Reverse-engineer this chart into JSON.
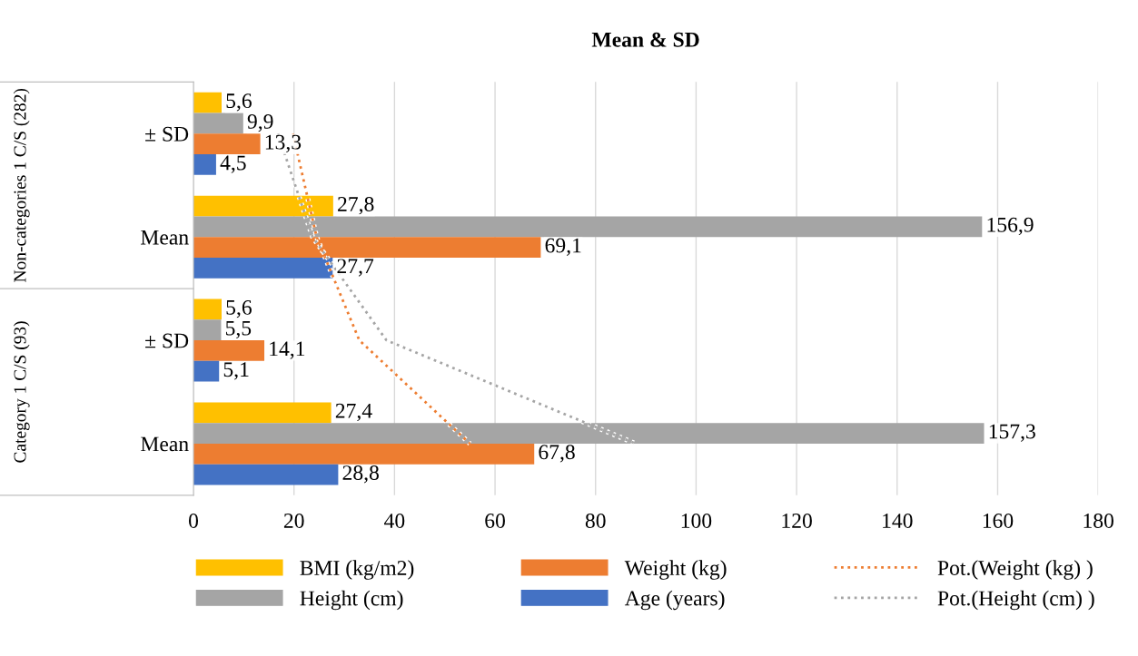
{
  "chart_data": {
    "type": "bar",
    "orientation": "horizontal",
    "title": "Mean & SD",
    "categories": [
      "± SD",
      "Mean",
      "± SD",
      "Mean"
    ],
    "annotations": [
      "Non-categories 1 C/S (282)",
      "Category 1 C/S (93)"
    ],
    "series": [
      {
        "name": "BMI (kg/m2)",
        "color": "#ffc000",
        "values": [
          5.6,
          27.8,
          5.6,
          27.4
        ],
        "value_labels": [
          "5,6",
          "27,8",
          "5,6",
          "27,4"
        ]
      },
      {
        "name": "Height (cm)",
        "color": "#a5a5a5",
        "values": [
          9.9,
          156.9,
          5.5,
          157.3
        ],
        "value_labels": [
          "9,9",
          "156,9",
          "5,5",
          "157,3"
        ]
      },
      {
        "name": "Weight (kg)",
        "color": "#ed7d31",
        "values": [
          13.3,
          69.1,
          14.1,
          67.8
        ],
        "value_labels": [
          "13,3",
          "69,1",
          "14,1",
          "67,8"
        ]
      },
      {
        "name": "Age (years)",
        "color": "#4472c4",
        "values": [
          4.5,
          27.7,
          5.1,
          28.8
        ],
        "value_labels": [
          "4,5",
          "27,7",
          "5,1",
          "28,8"
        ]
      },
      {
        "name": "Pot.(Weight (kg) )",
        "type": "line",
        "line_style": "dotted",
        "color": "#ed7d31",
        "values": [
          19.8,
          24.5,
          33,
          55
        ]
      },
      {
        "name": "Pot.(Height (cm) )",
        "type": "line",
        "line_style": "dotted",
        "color": "#a5a5a5",
        "values": [
          16.8,
          23.7,
          38.4,
          88
        ]
      }
    ],
    "xlim": [
      0,
      180
    ],
    "xticks": [
      0,
      20,
      40,
      60,
      80,
      100,
      120,
      140,
      160,
      180
    ],
    "grid": "x",
    "legend": "bottom"
  }
}
